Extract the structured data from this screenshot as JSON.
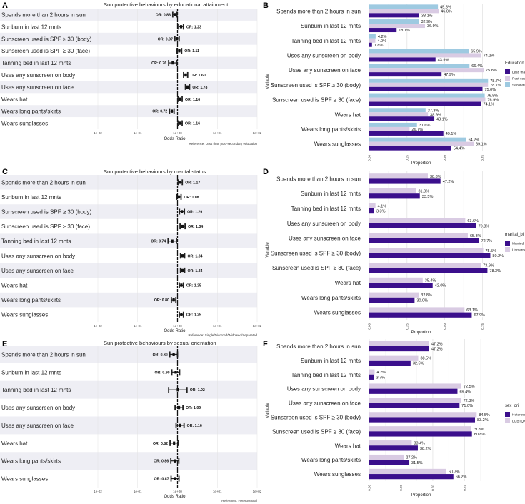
{
  "chart_data": [
    {
      "id": "A",
      "type": "forest",
      "title": "Sun protective behaviours by educational attainment",
      "xlabel": "Odds Ratio",
      "x_scale": "log10",
      "xlim": [
        0.01,
        100
      ],
      "x_ticks": [
        "1e-02",
        "1e-01",
        "1e+00",
        "1e+01",
        "1e+02"
      ],
      "reference_line": 1,
      "footnote": "Reference: Less than post-secondary education",
      "rows": [
        {
          "label": "Spends more than 2 hours in sun",
          "or": 0.86,
          "or_label": "OR: 0.86",
          "ci": [
            0.76,
            0.97
          ]
        },
        {
          "label": "Sunburn in last 12 mnts",
          "or": 1.23,
          "or_label": "OR: 1.23",
          "ci": [
            1.07,
            1.41
          ]
        },
        {
          "label": "Sunscreen used is SPF ≥ 30 (body)",
          "or": 0.97,
          "or_label": "OR: 0.97",
          "ci": [
            0.86,
            1.1
          ]
        },
        {
          "label": "Sunscreen used is SPF ≥ 30 (face)",
          "or": 1.11,
          "or_label": "OR: 1.11",
          "ci": [
            0.97,
            1.27
          ]
        },
        {
          "label": "Tanning bed in last 12 mnts",
          "or": 0.76,
          "or_label": "OR: 0.76",
          "ci": [
            0.6,
            0.96
          ]
        },
        {
          "label": "Uses any sunscreen on body",
          "or": 1.6,
          "or_label": "OR: 1.60",
          "ci": [
            1.42,
            1.8
          ]
        },
        {
          "label": "Uses any sunscreen on face",
          "or": 1.78,
          "or_label": "OR: 1.78",
          "ci": [
            1.58,
            2.01
          ]
        },
        {
          "label": "Wears hat",
          "or": 1.16,
          "or_label": "OR: 1.16",
          "ci": [
            1.03,
            1.31
          ]
        },
        {
          "label": "Wears long pants/skirts",
          "or": 0.72,
          "or_label": "OR: 0.72",
          "ci": [
            0.63,
            0.82
          ]
        },
        {
          "label": "Wears sunglasses",
          "or": 1.16,
          "or_label": "OR: 1.16",
          "ci": [
            1.03,
            1.31
          ]
        }
      ]
    },
    {
      "id": "B",
      "type": "bar",
      "orientation": "horizontal",
      "xlabel": "Proportion",
      "ylabel": "Variable",
      "xlim": [
        0,
        0.8
      ],
      "x_ticks": [
        "0.00",
        "0.25",
        "0.50",
        "0.75"
      ],
      "legend_title": "Education",
      "legend_position": "right",
      "categories": [
        "Spends more than 2 hours in sun",
        "Sunburn in last 12 mnts",
        "Tanning bed in last 12 mnts",
        "Uses any sunscreen on body",
        "Uses any sunscreen on face",
        "Sunscreen used is SPF ≥ 30 (body)",
        "Sunscreen used is SPF ≥ 30 (face)",
        "Wears hat",
        "Wears long pants/skirts",
        "Wears sunglasses"
      ],
      "series": [
        {
          "name": "Secondary school",
          "color": "#9ecae1",
          "values": [
            0.455,
            0.329,
            0.042,
            0.659,
            0.664,
            0.787,
            0.765,
            0.373,
            0.316,
            0.642
          ],
          "labels": [
            "45.5%",
            "32.9%",
            "4.2%",
            "65.9%",
            "66.4%",
            "78.7%",
            "76.5%",
            "37.3%",
            "31.6%",
            "64.2%"
          ]
        },
        {
          "name": "Post-secondary school",
          "color": "#d9cbe3",
          "values": [
            0.46,
            0.369,
            0.04,
            0.742,
            0.758,
            0.787,
            0.769,
            0.389,
            0.267,
            0.691
          ],
          "labels": [
            "46.0%",
            "36.9%",
            "4.0%",
            "74.2%",
            "75.8%",
            "78.7%",
            "76.9%",
            "38.9%",
            "26.7%",
            "69.1%"
          ]
        },
        {
          "name": "Less than secondary school",
          "color": "#3b0f8c",
          "values": [
            0.331,
            0.181,
            0.018,
            0.439,
            0.479,
            0.75,
            0.741,
            0.431,
            0.491,
            0.544
          ],
          "labels": [
            "33.1%",
            "18.1%",
            "1.8%",
            "43.9%",
            "47.9%",
            "75.0%",
            "74.1%",
            "43.1%",
            "49.1%",
            "54.4%"
          ]
        }
      ],
      "legend_order": [
        "Less than secondary school",
        "Post-secondary school",
        "Secondary school"
      ]
    },
    {
      "id": "C",
      "type": "forest",
      "title": "Sun protective behaviours by marital status",
      "xlabel": "Odds Ratio",
      "x_scale": "log10",
      "xlim": [
        0.01,
        100
      ],
      "x_ticks": [
        "1e-02",
        "1e-01",
        "1e+00",
        "1e+01",
        "1e+02"
      ],
      "reference_line": 1,
      "footnote": "Reference: Single/Divorced/Widowed/Separated",
      "rows": [
        {
          "label": "Spends more than 2 hours in sun",
          "or": 1.17,
          "or_label": "OR: 1.17",
          "ci": [
            1.04,
            1.32
          ]
        },
        {
          "label": "Sunburn in last 12 mnts",
          "or": 1.08,
          "or_label": "OR: 1.08",
          "ci": [
            0.95,
            1.23
          ]
        },
        {
          "label": "Sunscreen used is SPF ≥ 30 (body)",
          "or": 1.29,
          "or_label": "OR: 1.29",
          "ci": [
            1.12,
            1.49
          ]
        },
        {
          "label": "Sunscreen used is SPF ≥ 30 (face)",
          "or": 1.34,
          "or_label": "OR: 1.34",
          "ci": [
            1.16,
            1.55
          ]
        },
        {
          "label": "Tanning bed in last 12 mnts",
          "or": 0.74,
          "or_label": "OR: 0.74",
          "ci": [
            0.58,
            0.94
          ]
        },
        {
          "label": "Uses any sunscreen on body",
          "or": 1.34,
          "or_label": "OR: 1.34",
          "ci": [
            1.19,
            1.51
          ]
        },
        {
          "label": "Uses any sunscreen on face",
          "or": 1.34,
          "or_label": "OR: 1.34",
          "ci": [
            1.19,
            1.51
          ]
        },
        {
          "label": "Wears hat",
          "or": 1.25,
          "or_label": "OR: 1.25",
          "ci": [
            1.11,
            1.41
          ]
        },
        {
          "label": "Wears long pants/skirts",
          "or": 0.8,
          "or_label": "OR: 0.80",
          "ci": [
            0.7,
            0.91
          ]
        },
        {
          "label": "Wears sunglasses",
          "or": 1.25,
          "or_label": "OR: 1.25",
          "ci": [
            1.11,
            1.41
          ]
        }
      ]
    },
    {
      "id": "D",
      "type": "bar",
      "orientation": "horizontal",
      "xlabel": "Proportion",
      "ylabel": "Variable",
      "xlim": [
        0,
        0.8
      ],
      "x_ticks": [
        "0.00",
        "0.25",
        "0.50",
        "0.75"
      ],
      "legend_title": "marital_bi",
      "legend_position": "right",
      "categories": [
        "Spends more than 2 hours in sun",
        "Sunburn in last 12 mnts",
        "Tanning bed in last 12 mnts",
        "Uses any sunscreen on body",
        "Uses any sunscreen on face",
        "Sunscreen used is SPF ≥ 30 (body)",
        "Sunscreen used is SPF ≥ 30 (face)",
        "Wears hat",
        "Wears long pants/skirts",
        "Wears sunglasses"
      ],
      "series": [
        {
          "name": "Unmarried",
          "color": "#d9cbe3",
          "values": [
            0.388,
            0.31,
            0.041,
            0.636,
            0.653,
            0.755,
            0.739,
            0.354,
            0.328,
            0.631
          ],
          "labels": [
            "38.8%",
            "31.0%",
            "4.1%",
            "63.6%",
            "65.3%",
            "75.5%",
            "73.9%",
            "35.4%",
            "32.8%",
            "63.1%"
          ]
        },
        {
          "name": "Married",
          "color": "#3b0f8c",
          "values": [
            0.472,
            0.335,
            0.033,
            0.708,
            0.727,
            0.802,
            0.783,
            0.42,
            0.3,
            0.679
          ],
          "labels": [
            "47.2%",
            "33.5%",
            "3.3%",
            "70.8%",
            "72.7%",
            "80.2%",
            "78.3%",
            "42.0%",
            "30.0%",
            "67.9%"
          ]
        }
      ],
      "legend_order": [
        "Married",
        "Unmarried"
      ]
    },
    {
      "id": "E",
      "type": "forest",
      "title": "Sun protective behaviours by sexual orientation",
      "xlabel": "Odds Ratio",
      "x_scale": "log10",
      "xlim": [
        0.01,
        100
      ],
      "x_ticks": [
        "1e-02",
        "1e-01",
        "1e+00",
        "1e+01",
        "1e+02"
      ],
      "reference_line": 1,
      "footnote": "Reference: Heterosexual",
      "rows": [
        {
          "label": "Spends more than 2 hours in sun",
          "or": 0.8,
          "or_label": "OR: 0.80",
          "ci": [
            0.64,
            1.0
          ]
        },
        {
          "label": "Sunburn in last 12 mnts",
          "or": 0.9,
          "or_label": "OR: 0.90",
          "ci": [
            0.72,
            1.13
          ]
        },
        {
          "label": "Tanning bed in last 12 mnts",
          "or": 1.02,
          "or_label": "OR: 1.02",
          "ci": [
            0.6,
            1.73
          ]
        },
        {
          "label": "Uses any sunscreen on body",
          "or": 1.09,
          "or_label": "OR: 1.09",
          "ci": [
            0.87,
            1.37
          ]
        },
        {
          "label": "Uses any sunscreen on face",
          "or": 1.16,
          "or_label": "OR: 1.16",
          "ci": [
            0.92,
            1.46
          ]
        },
        {
          "label": "Wears hat",
          "or": 0.82,
          "or_label": "OR: 0.82",
          "ci": [
            0.65,
            1.03
          ]
        },
        {
          "label": "Wears long pants/skirts",
          "or": 0.86,
          "or_label": "OR: 0.86",
          "ci": [
            0.68,
            1.08
          ]
        },
        {
          "label": "Wears sunglasses",
          "or": 0.87,
          "or_label": "OR: 0.87",
          "ci": [
            0.69,
            1.09
          ]
        }
      ]
    },
    {
      "id": "F",
      "type": "bar",
      "orientation": "horizontal",
      "xlabel": "Proportion",
      "ylabel": "Variable",
      "xlim": [
        0,
        0.95
      ],
      "x_ticks": [
        "0.00",
        "0.25",
        "0.50",
        "0.75"
      ],
      "legend_title": "sex_ori",
      "legend_position": "right",
      "categories": [
        "Spends more than 2 hours in sun",
        "Sunburn in last 12 mnts",
        "Tanning bed in last 12 mnts",
        "Uses any sunscreen on body",
        "Uses any sunscreen on face",
        "Sunscreen used is SPF ≥ 30 (body)",
        "Sunscreen used is SPF ≥ 30 (face)",
        "Wears hat",
        "Wears long pants/skirts",
        "Wears sunglasses"
      ],
      "series": [
        {
          "name": "LGBTQ+",
          "color": "#d9cbe3",
          "values": [
            0.472,
            0.385,
            0.042,
            0.725,
            0.723,
            0.845,
            0.798,
            0.334,
            0.272,
            0.607
          ],
          "labels": [
            "47.2%",
            "38.5%",
            "4.2%",
            "72.5%",
            "72.3%",
            "84.5%",
            "79.8%",
            "33.4%",
            "27.2%",
            "60.7%"
          ]
        },
        {
          "name": "Heterosexual",
          "color": "#3b0f8c",
          "values": [
            0.472,
            0.325,
            0.037,
            0.694,
            0.71,
            0.832,
            0.808,
            0.382,
            0.315,
            0.662
          ],
          "labels": [
            "47.2%",
            "32.5%",
            "3.7%",
            "69.4%",
            "71.0%",
            "83.2%",
            "80.8%",
            "38.2%",
            "31.5%",
            "66.2%"
          ]
        }
      ],
      "legend_order": [
        "Heterosexual",
        "LGBTQ+"
      ]
    }
  ]
}
